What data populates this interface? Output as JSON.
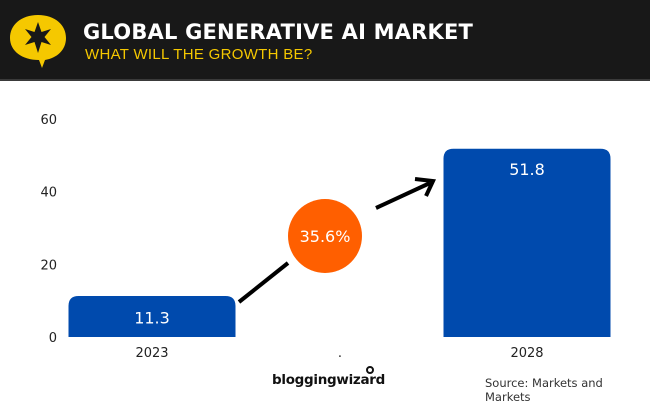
{
  "header": {
    "title": "GLOBAL GENERATIVE AI MARKET",
    "subtitle": "WHAT WILL THE GROWTH BE?",
    "logo_icon": "star-speech-bubble-icon"
  },
  "colors": {
    "header_bg": "#181818",
    "accent_yellow": "#f5c800",
    "bar_blue": "#004aad",
    "growth_orange": "#ff5f00"
  },
  "chart_data": {
    "type": "bar",
    "title": "Global Generative AI Market",
    "subtitle": "What will the growth be?",
    "categories": [
      "2023",
      ".",
      "2028"
    ],
    "values": [
      11.3,
      null,
      51.8
    ],
    "data_labels": [
      "11.3",
      "",
      "51.8"
    ],
    "ylim": [
      0,
      60
    ],
    "yticks": [
      0,
      20,
      40,
      60
    ],
    "ytick_labels": [
      "0",
      "20",
      "40",
      "60"
    ],
    "xlabel": "",
    "ylabel": "",
    "grid": false,
    "annotation": {
      "label": "35.6%",
      "meaning": "growth rate",
      "shape": "circle-with-arrow",
      "from": "2023",
      "to": "2028"
    }
  },
  "footer": {
    "brand": "bloggingwizard",
    "source": "Source: Markets and Markets"
  }
}
